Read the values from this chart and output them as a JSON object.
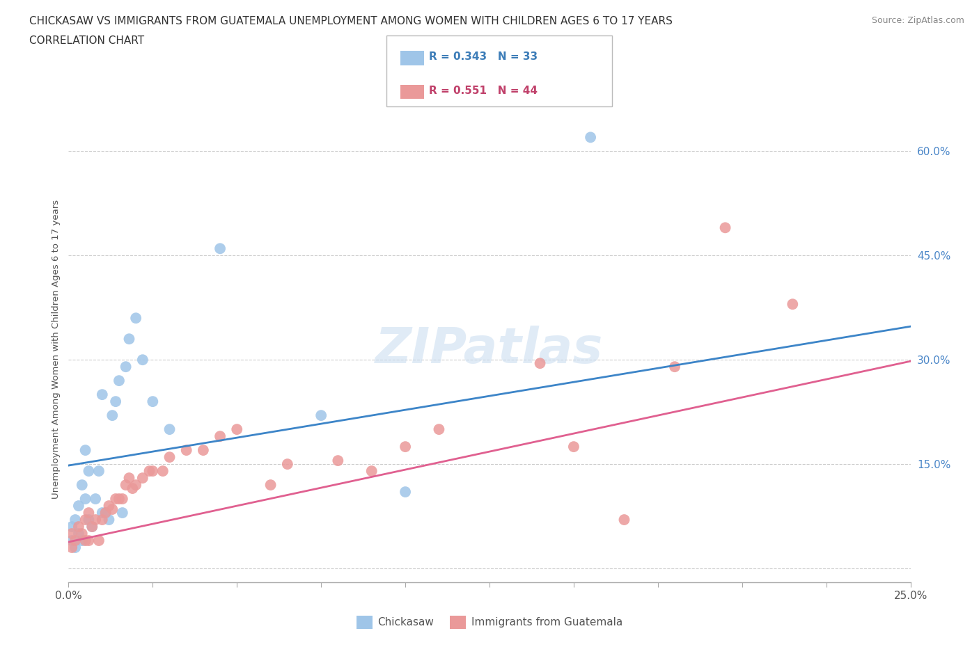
{
  "title_line1": "CHICKASAW VS IMMIGRANTS FROM GUATEMALA UNEMPLOYMENT AMONG WOMEN WITH CHILDREN AGES 6 TO 17 YEARS",
  "title_line2": "CORRELATION CHART",
  "source_text": "Source: ZipAtlas.com",
  "ylabel": "Unemployment Among Women with Children Ages 6 to 17 years",
  "xlim": [
    0.0,
    0.25
  ],
  "ylim": [
    -0.02,
    0.65
  ],
  "xticks": [
    0.0,
    0.025,
    0.05,
    0.075,
    0.1,
    0.125,
    0.15,
    0.175,
    0.2,
    0.225,
    0.25
  ],
  "xticklabels": [
    "0.0%",
    "",
    "",
    "",
    "",
    "",
    "",
    "",
    "",
    "",
    "25.0%"
  ],
  "ytick_positions": [
    0.0,
    0.15,
    0.3,
    0.45,
    0.6
  ],
  "ytick_labels": [
    "",
    "15.0%",
    "30.0%",
    "45.0%",
    "60.0%"
  ],
  "chickasaw_color": "#9fc5e8",
  "guatemala_color": "#ea9999",
  "chickasaw_line_color": "#3d85c8",
  "guatemala_line_color": "#e06090",
  "legend_R1": "R = 0.343",
  "legend_N1": "N = 33",
  "legend_R2": "R = 0.551",
  "legend_N2": "N = 44",
  "chickasaw_x": [
    0.001,
    0.001,
    0.002,
    0.002,
    0.003,
    0.003,
    0.004,
    0.004,
    0.005,
    0.005,
    0.006,
    0.006,
    0.007,
    0.008,
    0.009,
    0.01,
    0.01,
    0.011,
    0.012,
    0.013,
    0.014,
    0.015,
    0.016,
    0.017,
    0.018,
    0.02,
    0.022,
    0.025,
    0.03,
    0.045,
    0.075,
    0.1,
    0.155
  ],
  "chickasaw_y": [
    0.04,
    0.06,
    0.03,
    0.07,
    0.05,
    0.09,
    0.04,
    0.12,
    0.1,
    0.17,
    0.07,
    0.14,
    0.06,
    0.1,
    0.14,
    0.08,
    0.25,
    0.08,
    0.07,
    0.22,
    0.24,
    0.27,
    0.08,
    0.29,
    0.33,
    0.36,
    0.3,
    0.24,
    0.2,
    0.46,
    0.22,
    0.11,
    0.62
  ],
  "guatemala_x": [
    0.001,
    0.001,
    0.002,
    0.003,
    0.004,
    0.005,
    0.005,
    0.006,
    0.006,
    0.007,
    0.008,
    0.009,
    0.01,
    0.011,
    0.012,
    0.013,
    0.014,
    0.015,
    0.016,
    0.017,
    0.018,
    0.019,
    0.02,
    0.022,
    0.024,
    0.025,
    0.028,
    0.03,
    0.035,
    0.04,
    0.045,
    0.05,
    0.06,
    0.065,
    0.08,
    0.09,
    0.1,
    0.11,
    0.14,
    0.15,
    0.165,
    0.18,
    0.195,
    0.215
  ],
  "guatemala_y": [
    0.03,
    0.05,
    0.04,
    0.06,
    0.05,
    0.04,
    0.07,
    0.08,
    0.04,
    0.06,
    0.07,
    0.04,
    0.07,
    0.08,
    0.09,
    0.085,
    0.1,
    0.1,
    0.1,
    0.12,
    0.13,
    0.115,
    0.12,
    0.13,
    0.14,
    0.14,
    0.14,
    0.16,
    0.17,
    0.17,
    0.19,
    0.2,
    0.12,
    0.15,
    0.155,
    0.14,
    0.175,
    0.2,
    0.295,
    0.175,
    0.07,
    0.29,
    0.49,
    0.38
  ],
  "grid_color": "#cccccc",
  "bg_color": "#ffffff"
}
